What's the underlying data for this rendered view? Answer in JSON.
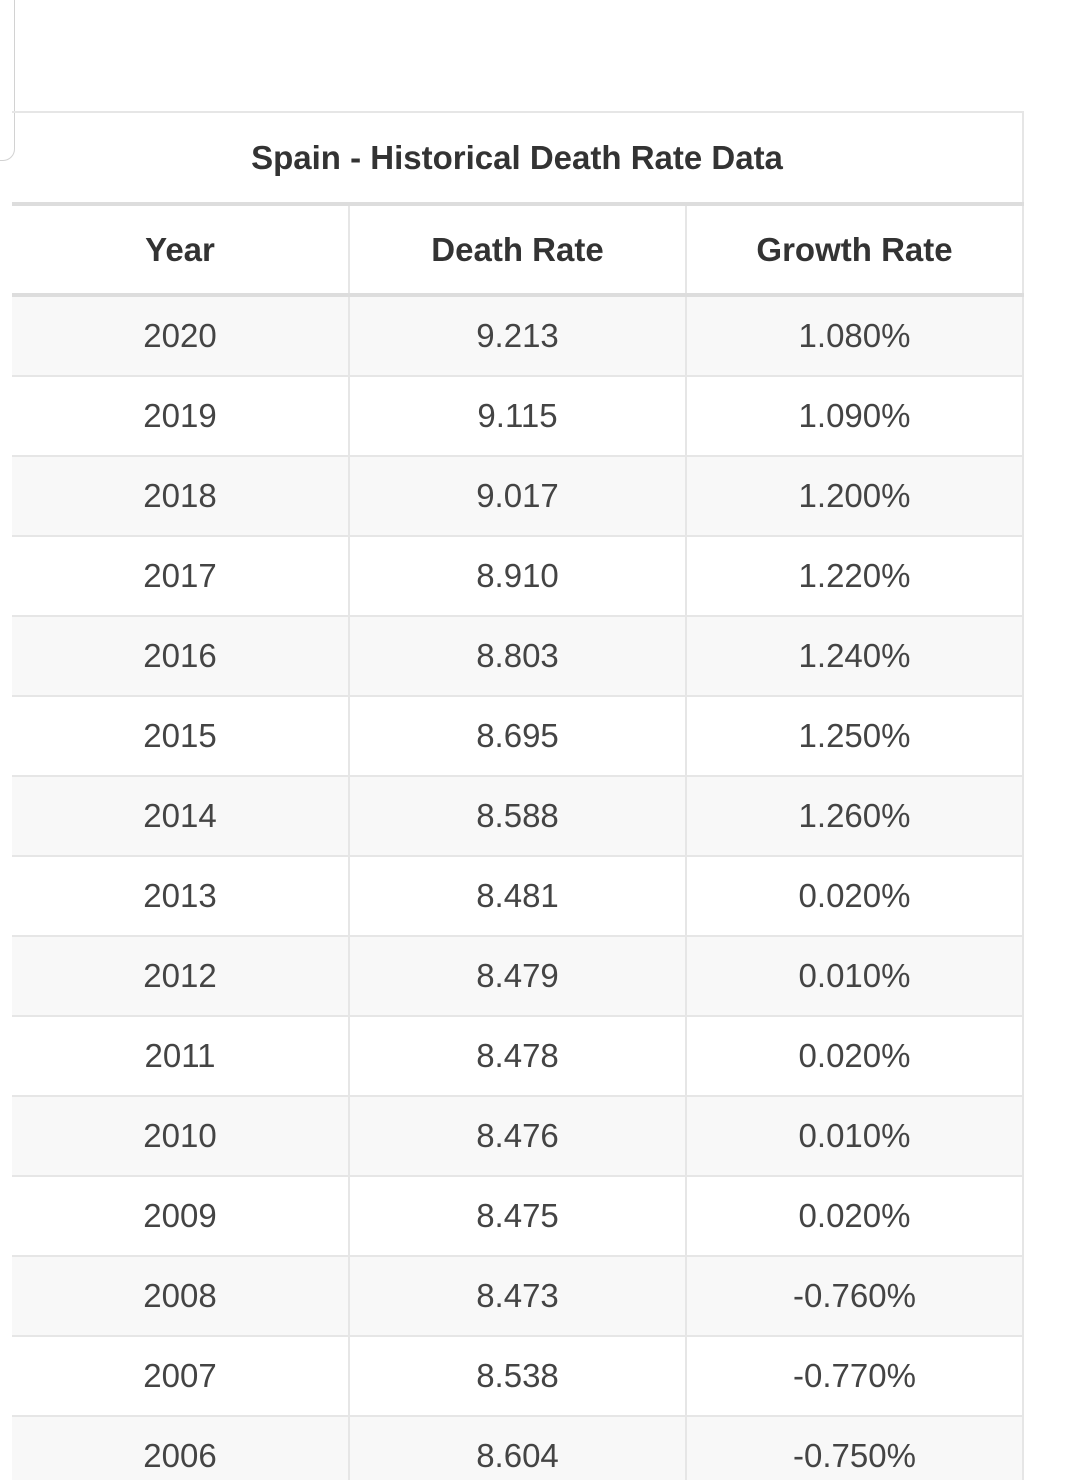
{
  "chart_data": {
    "type": "table",
    "title": "Spain - Historical Death Rate Data",
    "columns": [
      "Year",
      "Death Rate",
      "Growth Rate"
    ],
    "rows": [
      [
        "2020",
        "9.213",
        "1.080%"
      ],
      [
        "2019",
        "9.115",
        "1.090%"
      ],
      [
        "2018",
        "9.017",
        "1.200%"
      ],
      [
        "2017",
        "8.910",
        "1.220%"
      ],
      [
        "2016",
        "8.803",
        "1.240%"
      ],
      [
        "2015",
        "8.695",
        "1.250%"
      ],
      [
        "2014",
        "8.588",
        "1.260%"
      ],
      [
        "2013",
        "8.481",
        "0.020%"
      ],
      [
        "2012",
        "8.479",
        "0.010%"
      ],
      [
        "2011",
        "8.478",
        "0.020%"
      ],
      [
        "2010",
        "8.476",
        "0.010%"
      ],
      [
        "2009",
        "8.475",
        "0.020%"
      ],
      [
        "2008",
        "8.473",
        "-0.760%"
      ],
      [
        "2007",
        "8.538",
        "-0.770%"
      ],
      [
        "2006",
        "8.604",
        "-0.750%"
      ]
    ]
  }
}
